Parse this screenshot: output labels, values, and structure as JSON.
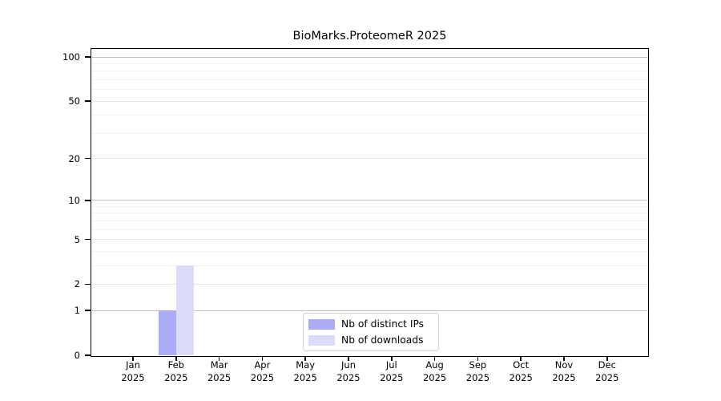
{
  "chart_data": {
    "type": "bar",
    "title": "BioMarks.ProteomeR 2025",
    "categories": [
      "Jan 2025",
      "Feb 2025",
      "Mar 2025",
      "Apr 2025",
      "May 2025",
      "Jun 2025",
      "Jul 2025",
      "Aug 2025",
      "Sep 2025",
      "Oct 2025",
      "Nov 2025",
      "Dec 2025"
    ],
    "series": [
      {
        "name": "Nb of distinct IPs",
        "color": "#aaaaf5",
        "values": [
          0,
          1,
          0,
          0,
          0,
          0,
          0,
          0,
          0,
          0,
          0,
          0
        ]
      },
      {
        "name": "Nb of downloads",
        "color": "#dcdcf8",
        "values": [
          0,
          3,
          0,
          0,
          0,
          0,
          0,
          0,
          0,
          0,
          0,
          0
        ]
      }
    ],
    "yscale": "log1p",
    "ylim": [
      0,
      100
    ],
    "yticks": [
      0,
      1,
      2,
      5,
      10,
      20,
      50,
      100
    ],
    "yticks_minor": [
      3,
      4,
      6,
      7,
      8,
      9,
      30,
      40,
      60,
      70,
      80,
      90
    ],
    "grid": "horizontal",
    "legend_position": "inside-bottom-center"
  },
  "colors": {
    "background": "#ffffff",
    "frame": "#000000",
    "text": "#000000",
    "grid_decade": "#c3c3c3",
    "grid_major": "#e7e7e7",
    "grid_minor": "#f0f0f0",
    "legend_border": "#d2d2d2"
  }
}
